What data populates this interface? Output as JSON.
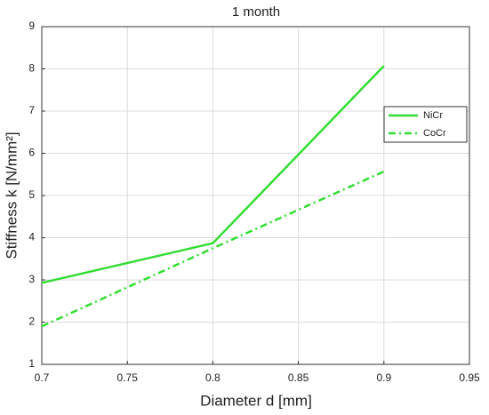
{
  "chart_data": {
    "type": "line",
    "title": "1 month",
    "x_label": "Diameter d [mm]",
    "y_label": "Stiffness k [N/mm²]",
    "x": [
      0.7,
      0.8,
      0.9
    ],
    "series": [
      {
        "name": "NiCr",
        "color": "#33dd33",
        "line_style": "solid",
        "values": [
          2.93,
          3.87,
          8.07
        ]
      },
      {
        "name": "CoCr",
        "color": "#33dd33",
        "line_style": "dash-dot",
        "values": [
          1.9,
          3.75,
          5.57
        ]
      }
    ],
    "xlim": [
      0.7,
      0.95
    ],
    "xticks": [
      0.7,
      0.75,
      0.8,
      0.85,
      0.9,
      0.95
    ],
    "ylim": [
      1,
      9
    ],
    "yticks": [
      1,
      2,
      3,
      4,
      5,
      6,
      7,
      8,
      9
    ],
    "grid": true,
    "legend": "northeast"
  }
}
